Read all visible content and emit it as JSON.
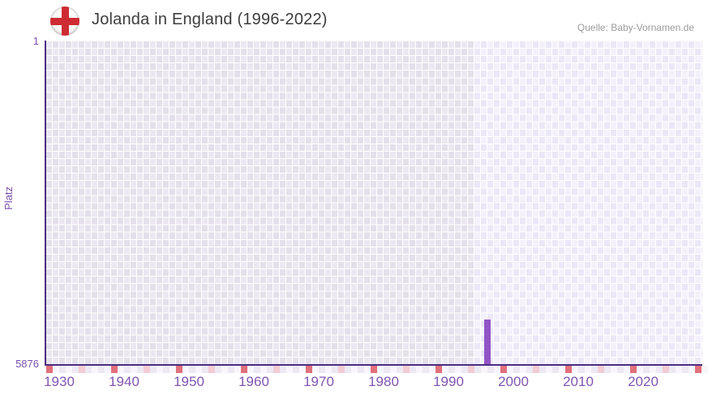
{
  "header": {
    "title": "Jolanda in England (1996-2022)",
    "source": "Quelle: Baby-Vornamen.de"
  },
  "chart_data": {
    "type": "bar",
    "title": "Jolanda in England (1996-2022)",
    "xlabel": "",
    "ylabel": "Platz",
    "y_axis": {
      "top_label": "1",
      "bottom_label": "5876",
      "min": 1,
      "max": 5876,
      "inverted": true
    },
    "x_axis": {
      "tick_years": [
        1930,
        1940,
        1950,
        1960,
        1970,
        1980,
        1990,
        2000,
        2010,
        2020
      ],
      "start_year": 1928,
      "end_year": 2029,
      "minor_tick_interval": 5,
      "major_tick_interval": 10
    },
    "series": [
      {
        "name": "Jolanda",
        "points": [
          {
            "year": 1996,
            "rank": 5066
          }
        ]
      }
    ],
    "data_period": {
      "from": 1996,
      "to": 2022
    },
    "highlight_band": {
      "start_year": 1994
    },
    "grid": "checkerboard",
    "legend": null,
    "colors": {
      "bar": "#9254c7",
      "axis_line": "#4b2e83",
      "tick_label": "#7b51ad",
      "year_label": "#7f55b2",
      "title_text": "#3d3d3d",
      "source_text": "#9b9b9b",
      "major_tick_mark": "#e0707c",
      "minor_tick_mark": "#f3ccd5",
      "below_axis_cell_even": "#ece9f3",
      "below_axis_cell_odd": "#f8f6fb",
      "grid_outside_a": "#e3e0ea",
      "grid_outside_b": "#ebe8f1",
      "grid_inside_a": "#ece7f6",
      "grid_inside_b": "#f4f1fb",
      "grid_line": "#ffffff",
      "flag_cross": "#cf2b33",
      "flag_bg": "#fbfbfb"
    }
  }
}
